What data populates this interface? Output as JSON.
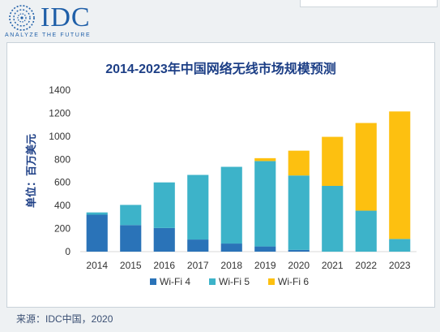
{
  "logo": {
    "name": "IDC",
    "tagline": "ANALYZE THE FUTURE",
    "color": "#1f5fa8"
  },
  "source": "来源：IDC中国，2020",
  "chart_data": {
    "type": "bar",
    "stacked": true,
    "title": "2014-2023年中国网络无线市场规模预测",
    "ylabel": "单位：百万美元",
    "xlabel": "",
    "ylim": [
      0,
      1400
    ],
    "yticks": [
      0,
      200,
      400,
      600,
      800,
      1000,
      1200,
      1400
    ],
    "grid": false,
    "legend_position": "bottom",
    "categories": [
      "2014",
      "2015",
      "2016",
      "2017",
      "2018",
      "2019",
      "2020",
      "2021",
      "2022",
      "2023"
    ],
    "series": [
      {
        "name": "Wi-Fi 4",
        "color": "#2a73b8",
        "values": [
          320,
          230,
          205,
          105,
          70,
          45,
          15,
          0,
          0,
          0
        ]
      },
      {
        "name": "Wi-Fi 5",
        "color": "#3db3c9",
        "values": [
          20,
          175,
          395,
          560,
          665,
          740,
          645,
          570,
          355,
          110
        ]
      },
      {
        "name": "Wi-Fi 6",
        "color": "#fdc010",
        "values": [
          0,
          0,
          0,
          0,
          0,
          25,
          215,
          425,
          760,
          1105
        ]
      }
    ]
  }
}
